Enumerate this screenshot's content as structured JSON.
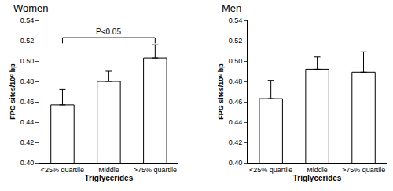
{
  "chart_data": [
    {
      "type": "bar",
      "title": "Women",
      "categories": [
        "<25% quartile",
        "Middle",
        ">75% quartile"
      ],
      "values": [
        0.457,
        0.48,
        0.503
      ],
      "errors": [
        0.015,
        0.01,
        0.013
      ],
      "color": "#ffffff",
      "xlabel": "Triglycerides",
      "ylabel": "FPG sites/10⁶ bp",
      "ylim": [
        0.4,
        0.54
      ],
      "yticks": [
        {
          "value": 0.4,
          "label": "0.40"
        },
        {
          "value": 0.42,
          "label": "0.42"
        },
        {
          "value": 0.44,
          "label": "0.44"
        },
        {
          "value": 0.46,
          "label": "0.46"
        },
        {
          "value": 0.48,
          "label": "0.48"
        },
        {
          "value": 0.5,
          "label": "0.50"
        },
        {
          "value": 0.52,
          "label": "0.52"
        },
        {
          "value": 0.54,
          "label": "0.54"
        }
      ],
      "grid": false,
      "annotations": [
        {
          "text": "P<0.05",
          "from": 0,
          "to": 2
        }
      ]
    },
    {
      "type": "bar",
      "title": "Men",
      "categories": [
        "<25% quartile",
        "Middle",
        ">75% quartile"
      ],
      "values": [
        0.463,
        0.492,
        0.489
      ],
      "errors": [
        0.018,
        0.012,
        0.02
      ],
      "color": "#ffffff",
      "xlabel": "Triglycerides",
      "ylabel": "FPG sites/10⁶ bp",
      "ylim": [
        0.4,
        0.54
      ],
      "yticks": [
        {
          "value": 0.4,
          "label": "0.40"
        },
        {
          "value": 0.42,
          "label": "0.42"
        },
        {
          "value": 0.44,
          "label": "0.44"
        },
        {
          "value": 0.46,
          "label": "0.46"
        },
        {
          "value": 0.48,
          "label": "0.48"
        },
        {
          "value": 0.5,
          "label": "0.50"
        },
        {
          "value": 0.52,
          "label": "0.52"
        },
        {
          "value": 0.54,
          "label": "0.54"
        }
      ],
      "grid": false
    }
  ]
}
